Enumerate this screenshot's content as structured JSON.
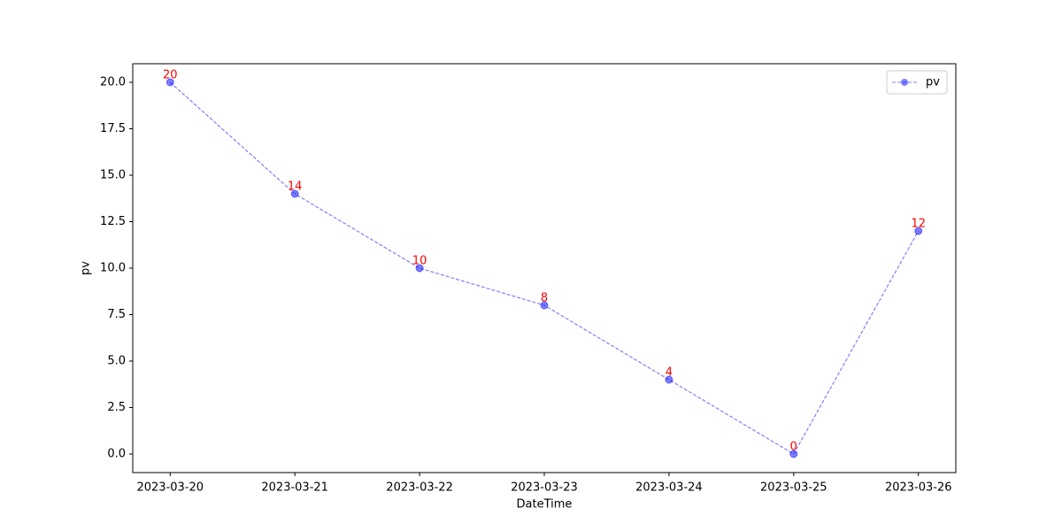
{
  "chart_data": {
    "type": "line",
    "x": [
      "2023-03-20",
      "2023-03-21",
      "2023-03-22",
      "2023-03-23",
      "2023-03-24",
      "2023-03-25",
      "2023-03-26"
    ],
    "series": [
      {
        "name": "pv",
        "color": "#0000ff",
        "values": [
          20,
          14,
          10,
          8,
          4,
          0,
          12
        ]
      }
    ],
    "xlabel": "DateTime",
    "ylabel": "pv",
    "xlim": [
      "2023-03-19T16:48:00Z",
      "2023-03-26T07:12:00Z"
    ],
    "xticks": [
      "2023-03-20",
      "2023-03-21",
      "2023-03-22",
      "2023-03-23",
      "2023-03-24",
      "2023-03-25",
      "2023-03-26"
    ],
    "ylim": [
      -1,
      21
    ],
    "yticks": [
      {
        "value": 0,
        "label": "0.0"
      },
      {
        "value": 2.5,
        "label": "2.5"
      },
      {
        "value": 5,
        "label": "5.0"
      },
      {
        "value": 7.5,
        "label": "7.5"
      },
      {
        "value": 10,
        "label": "10.0"
      },
      {
        "value": 12.5,
        "label": "12.5"
      },
      {
        "value": 15,
        "label": "15.0"
      },
      {
        "value": 17.5,
        "label": "17.5"
      },
      {
        "value": 20,
        "label": "20.0"
      }
    ],
    "grid": false,
    "legend": "upper right",
    "data_label_color": "#ff0000"
  }
}
